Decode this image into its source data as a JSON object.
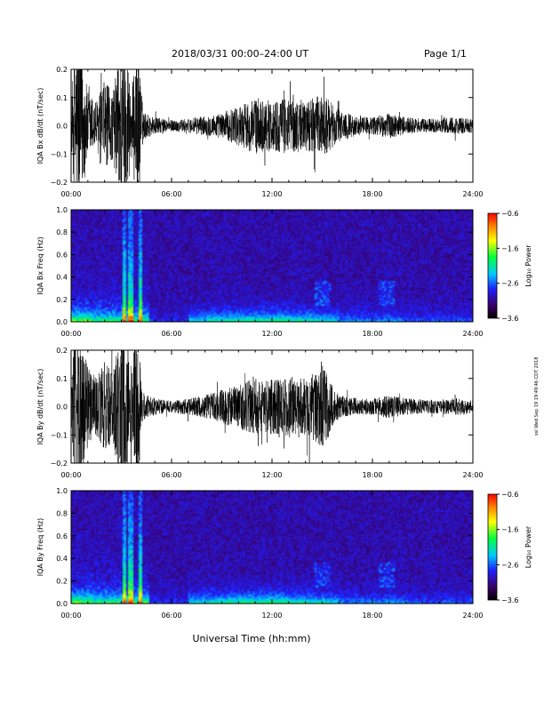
{
  "header": {
    "title": "2018/03/31   00:00–24:00 UT",
    "page": "Page 1/1"
  },
  "footer_xlabel": "Universal Time (hh:mm)",
  "side_stamp": "ssl Wed Sep 19 19:49:46 CDT 2018",
  "colors": {
    "trace": "#000000",
    "background": "#ffffff"
  },
  "chart_data": [
    {
      "type": "line",
      "ylabel": "IQA Bx dB/dt (nT/sec)",
      "xlim": [
        "00:00",
        "24:00"
      ],
      "x_ticks": [
        "00:00",
        "06:00",
        "12:00",
        "18:00",
        "24:00"
      ],
      "ylim": [
        -0.2,
        0.2
      ],
      "y_ticks": [
        "0.2",
        "0.1",
        "0.0",
        "−0.1",
        "−0.2"
      ],
      "envelope_time_h": [
        0,
        0.2,
        0.5,
        1,
        1.5,
        2,
        2.5,
        3,
        3.3,
        3.6,
        4,
        4.3,
        5,
        6,
        7,
        8,
        9,
        10,
        11,
        12,
        13,
        14,
        15,
        16,
        17,
        18,
        19,
        20,
        21,
        22,
        23,
        24
      ],
      "envelope_amplitude": [
        0.04,
        0.3,
        0.3,
        0.12,
        0.09,
        0.16,
        0.12,
        0.3,
        0.3,
        0.12,
        0.3,
        0.05,
        0.03,
        0.02,
        0.025,
        0.035,
        0.045,
        0.07,
        0.1,
        0.09,
        0.1,
        0.09,
        0.11,
        0.06,
        0.035,
        0.03,
        0.045,
        0.03,
        0.025,
        0.025,
        0.03,
        0.025
      ],
      "grid": false
    },
    {
      "type": "heatmap",
      "ylabel": "IQA Bx Freq (Hz)",
      "xlim": [
        "00:00",
        "24:00"
      ],
      "x_ticks": [
        "00:00",
        "06:00",
        "12:00",
        "18:00",
        "24:00"
      ],
      "ylim": [
        0.0,
        1.0
      ],
      "y_ticks": [
        "1.0",
        "0.8",
        "0.6",
        "0.4",
        "0.2",
        "0.0"
      ],
      "colorbar": {
        "label": "Log₁₀ Power",
        "range": [
          -3.6,
          -0.6
        ],
        "ticks": [
          "−0.6",
          "−1.6",
          "−2.6",
          "−3.6"
        ]
      },
      "features": {
        "bright_bursts_h": [
          3.1,
          3.5,
          4.1
        ],
        "structure_h": [
          15.0,
          18.8
        ]
      }
    },
    {
      "type": "line",
      "ylabel": "IQA By dB/dt (nT/sec)",
      "xlim": [
        "00:00",
        "24:00"
      ],
      "x_ticks": [
        "00:00",
        "06:00",
        "12:00",
        "18:00",
        "24:00"
      ],
      "ylim": [
        -0.2,
        0.2
      ],
      "y_ticks": [
        "0.2",
        "0.1",
        "0.0",
        "−0.1",
        "−0.2"
      ],
      "envelope_time_h": [
        0,
        0.2,
        0.5,
        1,
        1.5,
        2,
        2.5,
        3,
        3.3,
        3.6,
        4,
        4.3,
        5,
        6,
        7,
        8,
        9,
        10,
        11,
        12,
        13,
        14,
        15,
        16,
        17,
        18,
        19,
        20,
        21,
        22,
        23,
        24
      ],
      "envelope_amplitude": [
        0.04,
        0.3,
        0.3,
        0.14,
        0.1,
        0.16,
        0.12,
        0.3,
        0.3,
        0.13,
        0.3,
        0.05,
        0.03,
        0.02,
        0.03,
        0.04,
        0.06,
        0.08,
        0.1,
        0.1,
        0.11,
        0.1,
        0.15,
        0.04,
        0.03,
        0.03,
        0.04,
        0.03,
        0.025,
        0.025,
        0.03,
        0.025
      ],
      "grid": false
    },
    {
      "type": "heatmap",
      "ylabel": "IQA By Freq (Hz)",
      "xlim": [
        "00:00",
        "24:00"
      ],
      "x_ticks": [
        "00:00",
        "06:00",
        "12:00",
        "18:00",
        "24:00"
      ],
      "ylim": [
        0.0,
        1.0
      ],
      "y_ticks": [
        "1.0",
        "0.8",
        "0.6",
        "0.4",
        "0.2",
        "0.0"
      ],
      "colorbar": {
        "label": "Log₁₀ Power",
        "range": [
          -3.6,
          -0.6
        ],
        "ticks": [
          "−0.6",
          "−1.6",
          "−2.6",
          "−3.6"
        ]
      },
      "features": {
        "bright_bursts_h": [
          3.1,
          3.5,
          4.1
        ],
        "structure_h": [
          15.0,
          18.8
        ]
      }
    }
  ]
}
